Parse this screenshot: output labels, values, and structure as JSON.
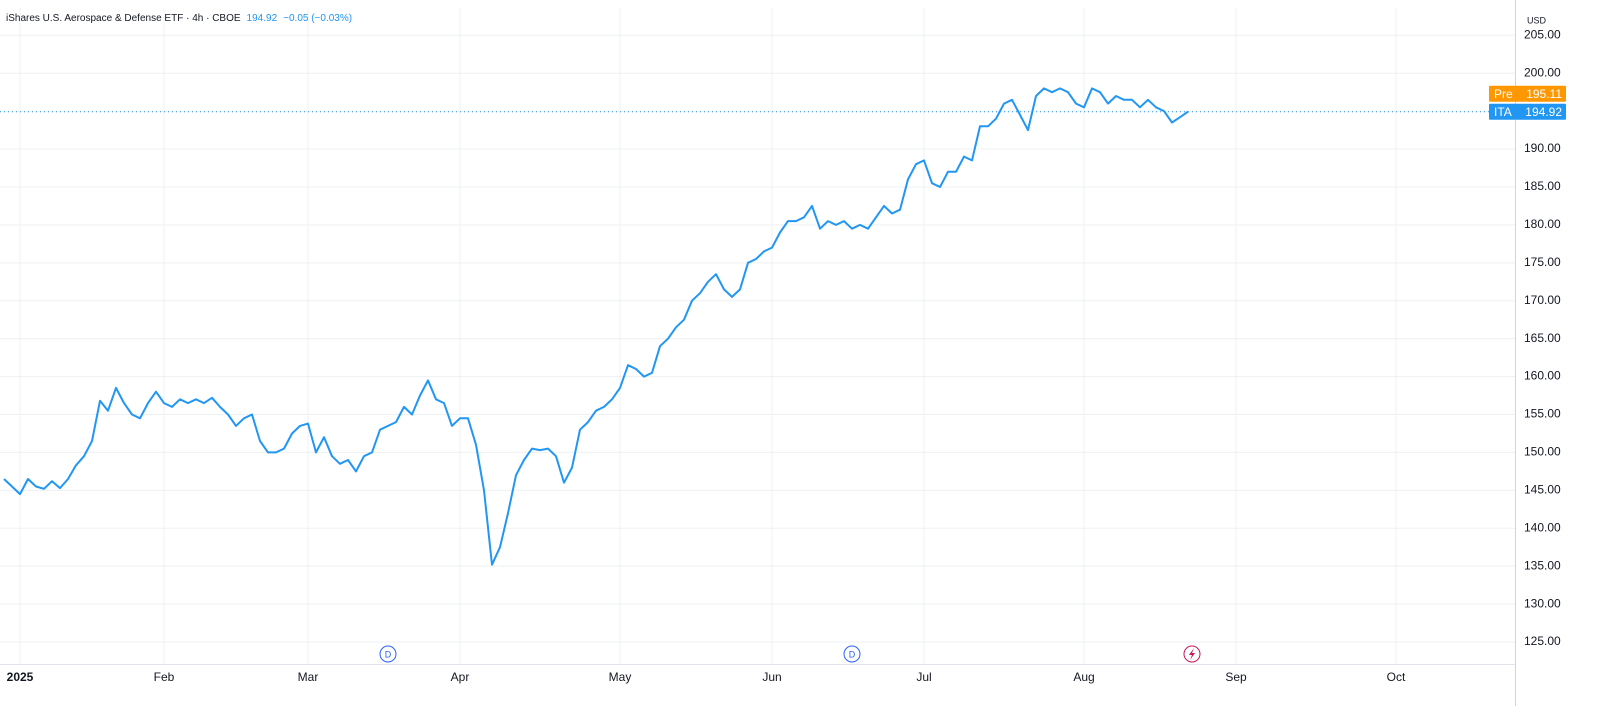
{
  "chart_data": {
    "type": "line",
    "title": "iShares U.S. Aerospace & Defense ETF · 4h · CBOE",
    "last": 194.92,
    "change": "−0.05 (−0.03%)",
    "currency": "USD",
    "categories": [
      null,
      null,
      "2025",
      null,
      null,
      null,
      null,
      null,
      null,
      null,
      null,
      null,
      null,
      null,
      null,
      null,
      null,
      null,
      null,
      null,
      "Feb",
      null,
      null,
      null,
      null,
      null,
      null,
      null,
      null,
      null,
      null,
      null,
      null,
      null,
      null,
      null,
      null,
      null,
      "Mar",
      null,
      null,
      null,
      null,
      null,
      null,
      null,
      null,
      null,
      null,
      null,
      null,
      null,
      null,
      null,
      null,
      null,
      null,
      "Apr",
      null,
      null,
      null,
      null,
      null,
      null,
      null,
      null,
      null,
      null,
      null,
      null,
      null,
      null,
      null,
      null,
      null,
      null,
      null,
      "May",
      null,
      null,
      null,
      null,
      null,
      null,
      null,
      null,
      null,
      null,
      null,
      null,
      null,
      null,
      null,
      null,
      null,
      null,
      "Jun",
      null,
      null,
      null,
      null,
      null,
      null,
      null,
      null,
      null,
      null,
      null,
      null,
      null,
      null,
      null,
      null,
      null,
      null,
      "Jul",
      null,
      null,
      null,
      null,
      null,
      null,
      null,
      null,
      null,
      null,
      null,
      null,
      null,
      null,
      null,
      null,
      null,
      null,
      null,
      "Aug",
      null,
      null,
      null,
      null,
      null,
      null,
      null,
      null,
      null,
      null,
      null,
      null,
      null,
      null,
      null,
      null,
      null,
      null,
      "Sep",
      null,
      null,
      null,
      null,
      null,
      null,
      null,
      null,
      null,
      null,
      null,
      null,
      null,
      null,
      null,
      null,
      null,
      null,
      null,
      "Oct",
      null,
      null,
      null,
      null,
      null,
      null,
      null,
      null,
      null,
      null,
      null,
      null,
      null,
      null
    ],
    "series": [
      {
        "name": "ITA",
        "color": "#2196f3",
        "values": [
          146.5,
          145.5,
          144.5,
          146.5,
          145.5,
          145.2,
          146.2,
          145.3,
          146.5,
          148.3,
          149.5,
          151.5,
          156.8,
          155.5,
          158.5,
          156.5,
          155,
          154.5,
          156.5,
          158,
          156.5,
          156,
          157,
          156.5,
          157,
          156.5,
          157.2,
          156,
          155,
          153.5,
          154.5,
          155,
          151.5,
          150,
          150,
          150.5,
          152.5,
          153.5,
          153.8,
          150,
          152,
          149.5,
          148.5,
          149,
          147.5,
          149.5,
          150,
          153,
          153.5,
          154,
          156,
          155,
          157.5,
          159.5,
          157,
          156.5,
          153.5,
          154.5,
          154.5,
          151,
          145,
          135.2,
          137.5,
          142,
          147,
          149,
          150.5,
          150.3,
          150.5,
          149.5,
          146,
          148,
          153,
          154,
          155.5,
          156,
          157,
          158.5,
          161.5,
          161,
          160,
          160.5,
          164,
          165,
          166.5,
          167.5,
          170,
          171,
          172.5,
          173.5,
          171.5,
          170.5,
          171.5,
          175,
          175.5,
          176.5,
          177,
          179,
          180.5,
          180.5,
          181,
          182.5,
          179.5,
          180.5,
          180,
          180.5,
          179.5,
          180,
          179.5,
          181,
          182.5,
          181.5,
          182,
          186,
          188,
          188.5,
          185.5,
          185,
          187,
          187,
          189,
          188.5,
          193,
          193,
          194,
          196,
          196.5,
          194.5,
          192.5,
          197,
          198,
          197.5,
          198,
          197.5,
          196,
          195.5,
          198,
          197.5,
          196,
          197,
          196.5,
          196.5,
          195.5,
          196.5,
          195.5,
          195,
          193.5,
          194.2,
          194.92,
          null,
          null,
          null,
          null,
          null,
          null,
          null,
          null,
          null,
          null,
          null,
          null,
          null,
          null,
          null,
          null,
          null,
          null,
          null,
          null,
          null,
          null,
          null,
          null,
          null,
          null,
          null,
          null,
          null,
          null,
          null,
          null,
          null,
          null,
          null,
          null,
          null,
          null,
          null,
          null
        ]
      }
    ],
    "ylim": [
      122.1,
      208.6
    ],
    "yticks": [
      {
        "value": 125,
        "label": "125.00"
      },
      {
        "value": 130,
        "label": "130.00"
      },
      {
        "value": 135,
        "label": "135.00"
      },
      {
        "value": 140,
        "label": "140.00"
      },
      {
        "value": 145,
        "label": "145.00"
      },
      {
        "value": 150,
        "label": "150.00"
      },
      {
        "value": 155,
        "label": "155.00"
      },
      {
        "value": 160,
        "label": "160.00"
      },
      {
        "value": 165,
        "label": "165.00"
      },
      {
        "value": 170,
        "label": "170.00"
      },
      {
        "value": 175,
        "label": "175.00"
      },
      {
        "value": 180,
        "label": "180.00"
      },
      {
        "value": 185,
        "label": "185.00"
      },
      {
        "value": 190,
        "label": "190.00"
      },
      {
        "value": 195,
        "label": "195.00"
      },
      {
        "value": 200,
        "label": "200.00"
      },
      {
        "value": 205,
        "label": "205.00"
      }
    ],
    "grid": true,
    "price_tags": [
      {
        "label": "Pre",
        "value": 195.11,
        "color": "#ff9800"
      },
      {
        "label": "ITA",
        "value": 194.92,
        "color": "#2196f3"
      }
    ],
    "events": [
      {
        "label": "D",
        "x": 48
      },
      {
        "label": "D",
        "x": 106
      }
    ]
  }
}
